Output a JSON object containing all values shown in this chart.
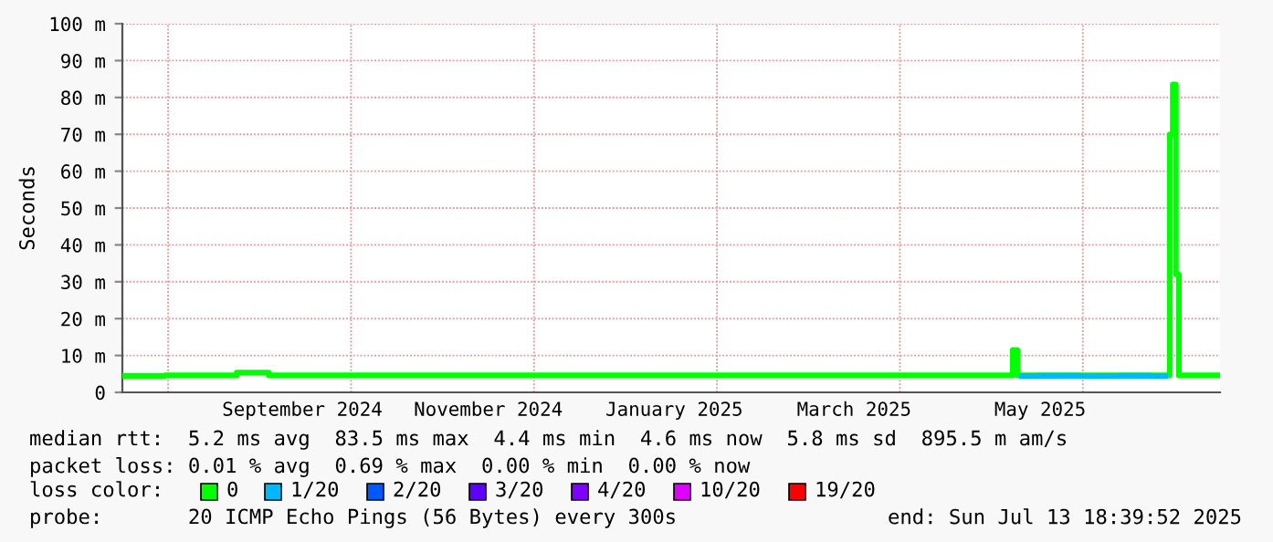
{
  "chart_data": {
    "type": "step",
    "ylabel": "Seconds",
    "xlim": [
      "2024-07-18",
      "2025-07-13"
    ],
    "xticks": [
      {
        "value": "2024-08-02",
        "label": null
      },
      {
        "value": "2024-09-15",
        "label": "September 2024"
      },
      {
        "value": "2024-10-01",
        "label": null
      },
      {
        "value": "2024-11-15",
        "label": "November 2024"
      },
      {
        "value": "2024-11-30",
        "label": null
      },
      {
        "value": "2025-01-15",
        "label": "January 2025"
      },
      {
        "value": "2025-01-29",
        "label": null
      },
      {
        "value": "2025-03-15",
        "label": "March 2025"
      },
      {
        "value": "2025-03-30",
        "label": null
      },
      {
        "value": "2025-05-15",
        "label": "May 2025"
      },
      {
        "value": "2025-05-29",
        "label": null
      }
    ],
    "ylim": [
      0,
      100
    ],
    "yticks": [
      {
        "value": 0,
        "label": "0"
      },
      {
        "value": 10,
        "label": "10 m"
      },
      {
        "value": 20,
        "label": "20 m"
      },
      {
        "value": 30,
        "label": "30 m"
      },
      {
        "value": 40,
        "label": "40 m"
      },
      {
        "value": 50,
        "label": "50 m"
      },
      {
        "value": 60,
        "label": "60 m"
      },
      {
        "value": 70,
        "label": "70 m"
      },
      {
        "value": 80,
        "label": "80 m"
      },
      {
        "value": 90,
        "label": "90 m"
      },
      {
        "value": 100,
        "label": "100 m"
      }
    ],
    "grid": true,
    "legend": "bottom",
    "legend_title": "loss color:",
    "series": [
      {
        "name": "0",
        "color": "#00ff00",
        "x": [
          "2024-07-18",
          "2024-08-15",
          "2024-09-03",
          "2024-09-05",
          "2024-10-15",
          "2024-11-20",
          "2024-12-25",
          "2025-01-20",
          "2025-02-20",
          "2025-03-20",
          "2025-04-20",
          "2025-05-05",
          "2025-05-07",
          "2025-05-08",
          "2025-06-01",
          "2025-06-26",
          "2025-06-27",
          "2025-06-28",
          "2025-06-29",
          "2025-06-30",
          "2025-07-13"
        ],
        "values": [
          4.5,
          4.6,
          5.4,
          4.6,
          4.6,
          4.6,
          4.6,
          4.6,
          4.6,
          4.6,
          4.6,
          4.6,
          11.5,
          4.6,
          4.6,
          4.6,
          70,
          83.5,
          32,
          4.6,
          4.6
        ]
      },
      {
        "name": "1/20",
        "color": "#00b8ff",
        "x": [
          "2025-05-09",
          "2025-05-20",
          "2025-06-05",
          "2025-06-15",
          "2025-06-25"
        ],
        "values": [
          4.4,
          4.5,
          4.4,
          4.5,
          4.4
        ]
      },
      {
        "name": "2/20",
        "color": "#0059ff"
      },
      {
        "name": "3/20",
        "color": "#5e00ff"
      },
      {
        "name": "4/20",
        "color": "#7e00ff"
      },
      {
        "name": "10/20",
        "color": "#dd00ff"
      },
      {
        "name": "19/20",
        "color": "#ff0000"
      }
    ],
    "annotations": [
      "median rtt:  5.2 ms avg  83.5 ms max  4.4 ms min  4.6 ms now  5.8 ms sd  895.5 m am/s",
      "packet loss: 0.01 % avg  0.69 % max  0.00 % min  0.00 % now",
      "probe:       20 ICMP Echo Pings (56 Bytes) every 300s",
      "end: Sun Jul 13 18:39:52 2025"
    ]
  }
}
